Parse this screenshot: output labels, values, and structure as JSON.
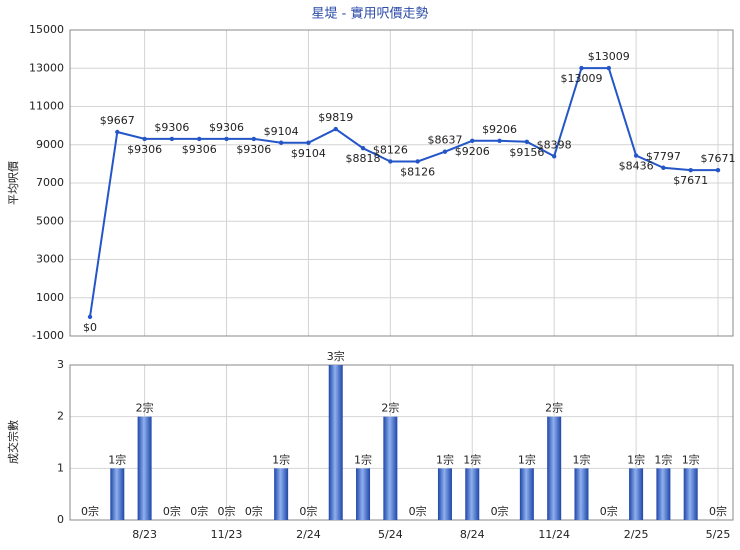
{
  "chart_data": [
    {
      "type": "line",
      "title": "星堤 - 實用呎價走勢",
      "y_label": "平均呎價",
      "color": "#2456c8",
      "values": [
        0,
        9667,
        9306,
        9306,
        9306,
        9306,
        9306,
        9104,
        9104,
        9819,
        8818,
        8126,
        8126,
        8637,
        9206,
        9206,
        9156,
        8398,
        13009,
        13009,
        8436,
        7797,
        7671,
        7671
      ],
      "value_labels": [
        "$0",
        "$9667",
        "$9306",
        "$9306",
        "$9306",
        "$9306",
        "$9306",
        "$9104",
        "$9104",
        "$9819",
        "$8818",
        "$8126",
        "$8126",
        "$8637",
        "$9206",
        "$9206",
        "$9156",
        "$8398",
        "$13009",
        "$13009",
        "$8436",
        "$7797",
        "$7671",
        "$7671"
      ],
      "ylim": [
        -1000,
        15000
      ],
      "yticks": [
        -1000,
        1000,
        3000,
        5000,
        7000,
        9000,
        11000,
        13000,
        15000
      ],
      "grid": true
    },
    {
      "type": "bar",
      "y_label": "成交宗數",
      "color": "#3a64c8",
      "categories": [
        null,
        null,
        "8/23",
        null,
        null,
        "11/23",
        null,
        null,
        "2/24",
        null,
        null,
        "5/24",
        null,
        null,
        "8/24",
        null,
        null,
        "11/24",
        null,
        null,
        "2/25",
        null,
        null,
        "5/25"
      ],
      "values": [
        0,
        1,
        2,
        0,
        0,
        0,
        0,
        1,
        0,
        3,
        1,
        2,
        0,
        1,
        1,
        0,
        1,
        2,
        1,
        0,
        1,
        1,
        1,
        0
      ],
      "value_labels": [
        "0宗",
        "1宗",
        "2宗",
        "0宗",
        "0宗",
        "0宗",
        "0宗",
        "1宗",
        "0宗",
        "3宗",
        "1宗",
        "2宗",
        "0宗",
        "1宗",
        "1宗",
        "0宗",
        "1宗",
        "2宗",
        "1宗",
        "0宗",
        "1宗",
        "1宗",
        "1宗",
        "0宗"
      ],
      "ylim": [
        0,
        3
      ],
      "yticks": [
        0,
        1,
        2,
        3
      ],
      "grid": true
    }
  ]
}
